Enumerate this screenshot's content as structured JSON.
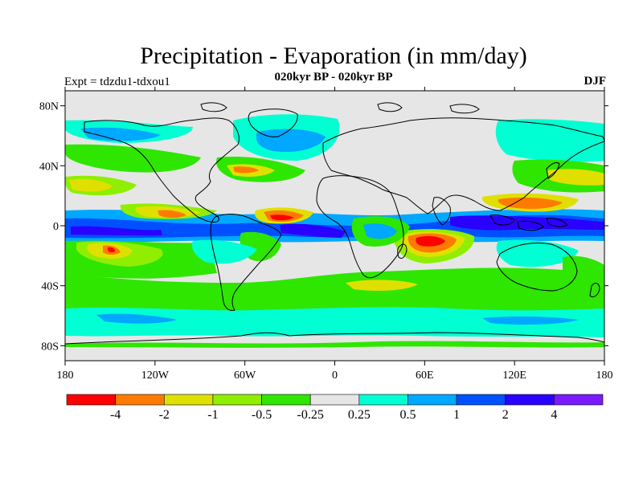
{
  "title": "Precipitation - Evaporation (in mm/day)",
  "subtitle": "020kyr BP - 020kyr BP",
  "experiment": "Expt = tdzdu1-tdxou1",
  "season": "DJF",
  "axes": {
    "lon_ticks": [
      {
        "value": -180,
        "label": "180"
      },
      {
        "value": -120,
        "label": "120W"
      },
      {
        "value": -60,
        "label": "60W"
      },
      {
        "value": 0,
        "label": "0"
      },
      {
        "value": 60,
        "label": "60E"
      },
      {
        "value": 120,
        "label": "120E"
      },
      {
        "value": 180,
        "label": "180"
      }
    ],
    "lat_ticks": [
      {
        "value": 80,
        "label": "80N"
      },
      {
        "value": 40,
        "label": "40N"
      },
      {
        "value": 0,
        "label": "0"
      },
      {
        "value": -40,
        "label": "40S"
      },
      {
        "value": -80,
        "label": "80S"
      }
    ]
  },
  "colorbar": {
    "colors": [
      "#ff0000",
      "#ff7a00",
      "#e0e000",
      "#90ee00",
      "#2ee600",
      "#e6e6e6",
      "#00ffd2",
      "#00a8ff",
      "#0050ff",
      "#2a00ff",
      "#7a1aff"
    ],
    "boundaries": [
      "-4",
      "-2",
      "-1",
      "-0.5",
      "-0.25",
      "0.25",
      "0.5",
      "1",
      "2",
      "4"
    ]
  },
  "map": {
    "background": "#e6e6e6",
    "coastline_color": "#000000"
  }
}
